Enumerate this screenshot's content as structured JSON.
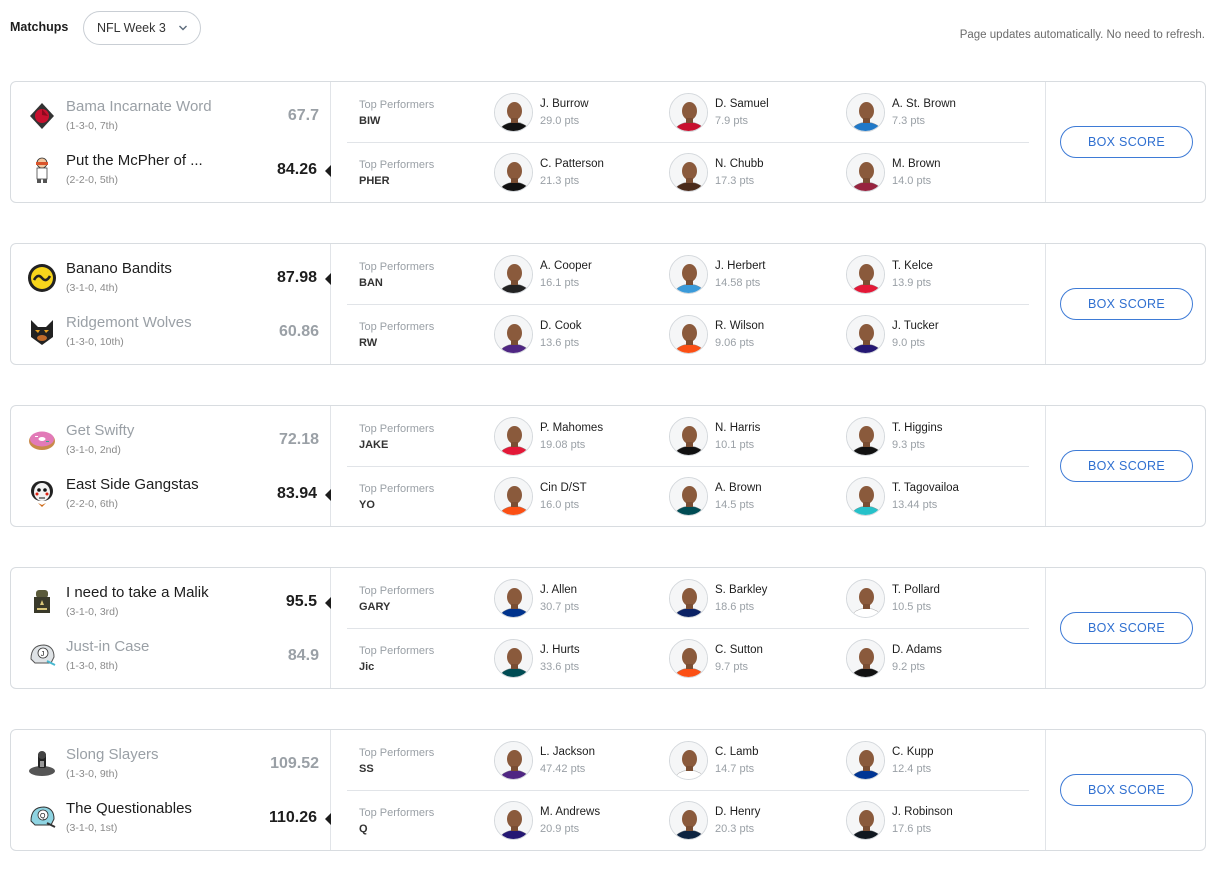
{
  "header": {
    "title": "Matchups",
    "week_select": "NFL Week 3",
    "note": "Page updates automatically. No need to refresh."
  },
  "box_score_label": "BOX SCORE",
  "top_performers_label": "Top Performers",
  "matchups": [
    {
      "teams": [
        {
          "name": "Bama Incarnate Word",
          "record": "(1-3-0, 7th)",
          "score": "67.7",
          "result": "loss",
          "logo": "cardinal-logo-icon"
        },
        {
          "name": "Put the McPher of ...",
          "record": "(2-2-0, 5th)",
          "score": "84.26",
          "result": "win",
          "logo": "figure-logo-icon"
        }
      ],
      "rows": [
        {
          "abbr": "BIW",
          "players": [
            {
              "name": "J. Burrow",
              "pts": "29.0 pts",
              "jersey": "#111111"
            },
            {
              "name": "D. Samuel",
              "pts": "7.9 pts",
              "jersey": "#c8102e"
            },
            {
              "name": "A. St. Brown",
              "pts": "7.3 pts",
              "jersey": "#1f78c8"
            }
          ]
        },
        {
          "abbr": "PHER",
          "players": [
            {
              "name": "C. Patterson",
              "pts": "21.3 pts",
              "jersey": "#111111"
            },
            {
              "name": "N. Chubb",
              "pts": "17.3 pts",
              "jersey": "#4a2a1a"
            },
            {
              "name": "M. Brown",
              "pts": "14.0 pts",
              "jersey": "#97233f"
            }
          ]
        }
      ]
    },
    {
      "teams": [
        {
          "name": "Banano Bandits",
          "record": "(3-1-0, 4th)",
          "score": "87.98",
          "result": "win",
          "logo": "banano-logo-icon"
        },
        {
          "name": "Ridgemont Wolves",
          "record": "(1-3-0, 10th)",
          "score": "60.86",
          "result": "loss",
          "logo": "wolf-logo-icon"
        }
      ],
      "rows": [
        {
          "abbr": "BAN",
          "players": [
            {
              "name": "A. Cooper",
              "pts": "16.1 pts",
              "jersey": "#222222"
            },
            {
              "name": "J. Herbert",
              "pts": "14.58 pts",
              "jersey": "#3a9ad9"
            },
            {
              "name": "T. Kelce",
              "pts": "13.9 pts",
              "jersey": "#e31837"
            }
          ]
        },
        {
          "abbr": "RW",
          "players": [
            {
              "name": "D. Cook",
              "pts": "13.6 pts",
              "jersey": "#4f2683"
            },
            {
              "name": "R. Wilson",
              "pts": "9.06 pts",
              "jersey": "#fb4f14"
            },
            {
              "name": "J. Tucker",
              "pts": "9.0 pts",
              "jersey": "#241773"
            }
          ]
        }
      ]
    },
    {
      "teams": [
        {
          "name": "Get Swifty",
          "record": "(3-1-0, 2nd)",
          "score": "72.18",
          "result": "loss",
          "logo": "donut-logo-icon"
        },
        {
          "name": "East Side Gangstas",
          "record": "(2-2-0, 6th)",
          "score": "83.94",
          "result": "win",
          "logo": "jigsaw-logo-icon"
        }
      ],
      "rows": [
        {
          "abbr": "JAKE",
          "players": [
            {
              "name": "P. Mahomes",
              "pts": "19.08 pts",
              "jersey": "#e31837"
            },
            {
              "name": "N. Harris",
              "pts": "10.1 pts",
              "jersey": "#111111"
            },
            {
              "name": "T. Higgins",
              "pts": "9.3 pts",
              "jersey": "#111111"
            }
          ]
        },
        {
          "abbr": "YO",
          "players": [
            {
              "name": "Cin D/ST",
              "pts": "16.0 pts",
              "jersey": "#fb4f14"
            },
            {
              "name": "A. Brown",
              "pts": "14.5 pts",
              "jersey": "#004c54"
            },
            {
              "name": "T. Tagovailoa",
              "pts": "13.44 pts",
              "jersey": "#26c1c9"
            }
          ]
        }
      ]
    },
    {
      "teams": [
        {
          "name": "I need to take a Malik",
          "record": "(3-1-0, 3rd)",
          "score": "95.5",
          "result": "win",
          "logo": "knight-logo-icon"
        },
        {
          "name": "Just-in Case",
          "record": "(1-3-0, 8th)",
          "score": "84.9",
          "result": "loss",
          "logo": "helmet-j-logo-icon"
        }
      ],
      "rows": [
        {
          "abbr": "GARY",
          "players": [
            {
              "name": "J. Allen",
              "pts": "30.7 pts",
              "jersey": "#00338d"
            },
            {
              "name": "S. Barkley",
              "pts": "18.6 pts",
              "jersey": "#0b2265"
            },
            {
              "name": "T. Pollard",
              "pts": "10.5 pts",
              "jersey": "#ffffff"
            }
          ]
        },
        {
          "abbr": "Jic",
          "players": [
            {
              "name": "J. Hurts",
              "pts": "33.6 pts",
              "jersey": "#004c54"
            },
            {
              "name": "C. Sutton",
              "pts": "9.7 pts",
              "jersey": "#fb4f14"
            },
            {
              "name": "D. Adams",
              "pts": "9.2 pts",
              "jersey": "#111111"
            }
          ]
        }
      ]
    },
    {
      "teams": [
        {
          "name": "Slong Slayers",
          "record": "(1-3-0, 9th)",
          "score": "109.52",
          "result": "loss",
          "logo": "spartan-logo-icon"
        },
        {
          "name": "The Questionables",
          "record": "(3-1-0, 1st)",
          "score": "110.26",
          "result": "win",
          "logo": "helmet-q-logo-icon"
        }
      ],
      "rows": [
        {
          "abbr": "SS",
          "players": [
            {
              "name": "L. Jackson",
              "pts": "47.42 pts",
              "jersey": "#4f2683"
            },
            {
              "name": "C. Lamb",
              "pts": "14.7 pts",
              "jersey": "#ffffff"
            },
            {
              "name": "C. Kupp",
              "pts": "12.4 pts",
              "jersey": "#003594"
            }
          ]
        },
        {
          "abbr": "Q",
          "players": [
            {
              "name": "M. Andrews",
              "pts": "20.9 pts",
              "jersey": "#241773"
            },
            {
              "name": "D. Henry",
              "pts": "20.3 pts",
              "jersey": "#0c2340"
            },
            {
              "name": "J. Robinson",
              "pts": "17.6 pts",
              "jersey": "#101820"
            }
          ]
        }
      ]
    }
  ]
}
